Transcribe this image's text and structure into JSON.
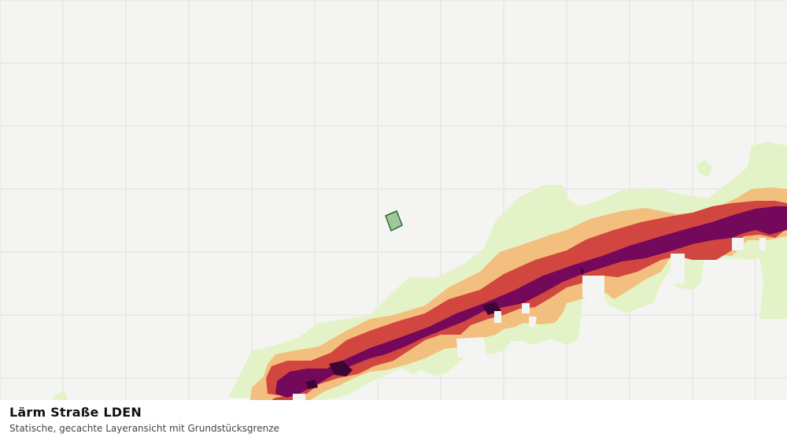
{
  "map": {
    "layer": "Lärm Straße LDEN",
    "noise_class_colors": [
      "#e4f2c8",
      "#f2bf7e",
      "#d1463e",
      "#74085a",
      "#3d0535"
    ],
    "parcel_fill": "#9ec79a",
    "parcel_stroke": "#2c6b35",
    "grid_color": "#e0e1de"
  },
  "caption": {
    "title": "Lärm Straße LDEN",
    "subtitle": "Statische, gecachte Layeransicht mit Grundstücksgrenze"
  }
}
